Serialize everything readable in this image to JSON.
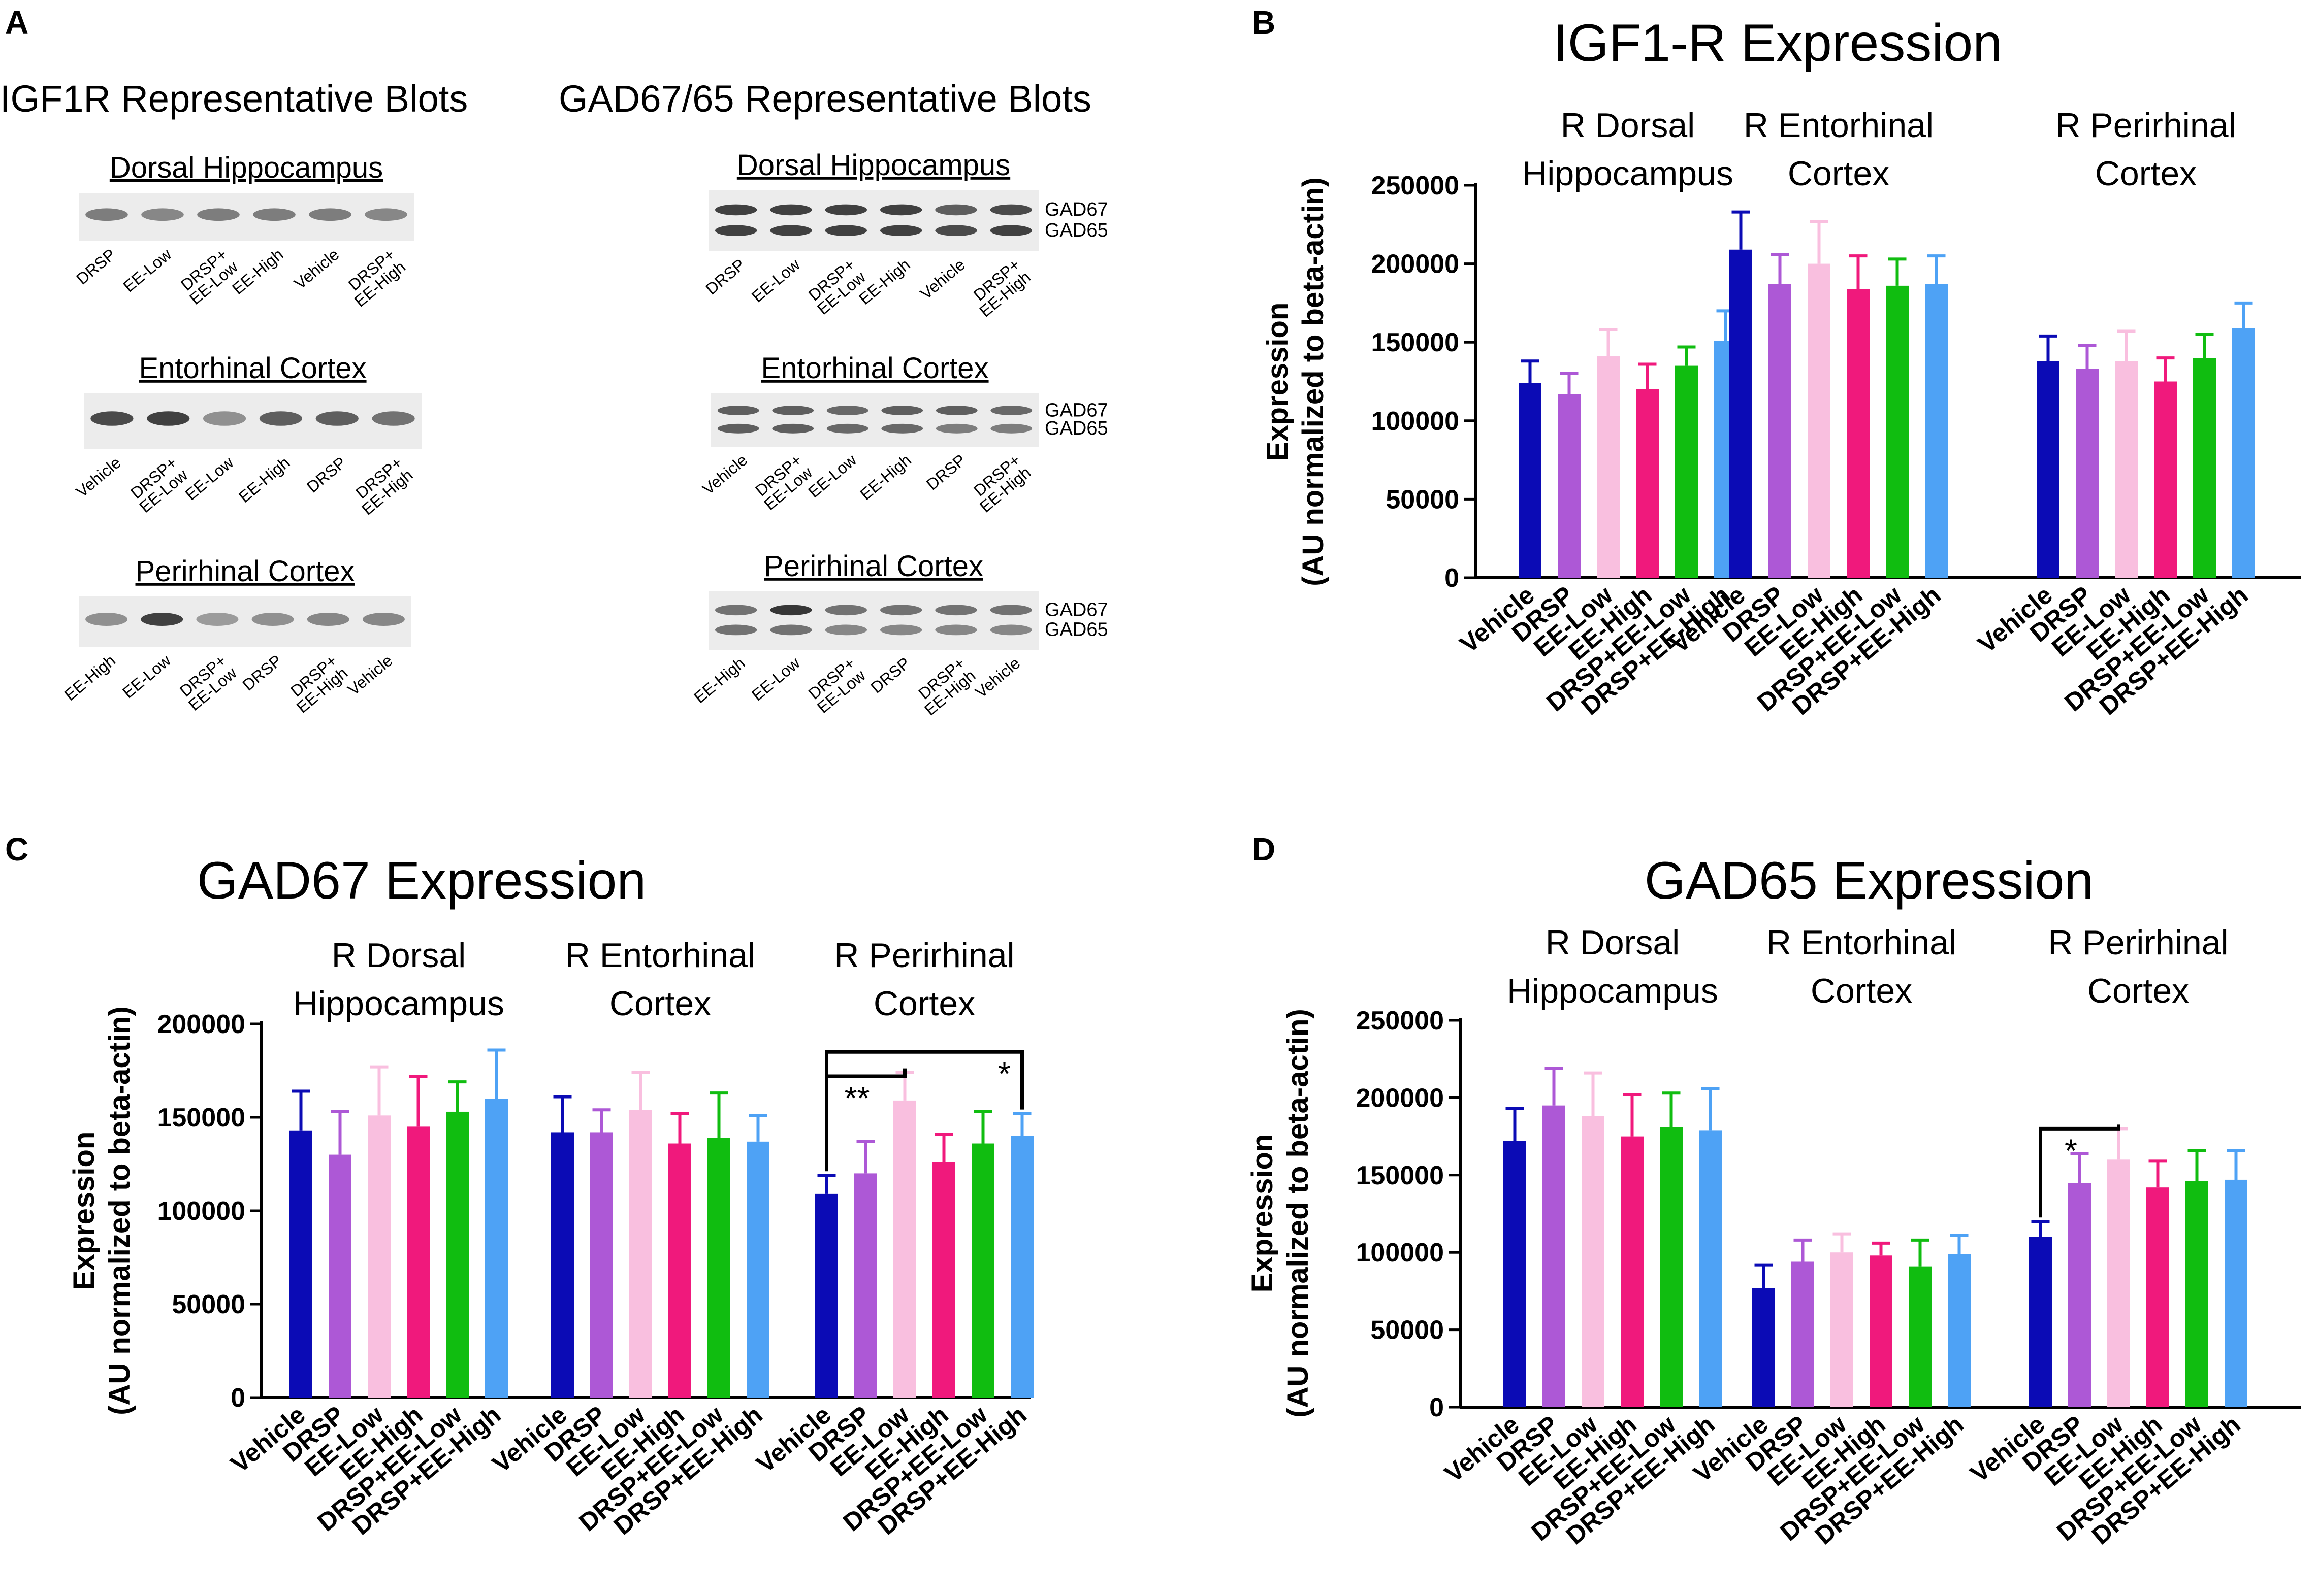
{
  "panels": {
    "A": "A",
    "B": "B",
    "C": "C",
    "D": "D"
  },
  "blots": {
    "igf1r": {
      "title": "IGF1R Representative Blots",
      "regions": [
        {
          "name": "Dorsal Hippocampus",
          "lanes": [
            "DRSP",
            "EE-Low",
            "DRSP+ EE-Low",
            "EE-High",
            "Vehicle",
            "DRSP+ EE-High"
          ]
        },
        {
          "name": "Entorhinal Cortex",
          "lanes": [
            "Vehicle",
            "DRSP+ EE-Low",
            "EE-Low",
            "EE-High",
            "DRSP",
            "DRSP+ EE-High"
          ]
        },
        {
          "name": "Perirhinal Cortex",
          "lanes": [
            "EE-High",
            "EE-Low",
            "DRSP+ EE-Low",
            "DRSP",
            "DRSP+ EE-High",
            "Vehicle"
          ]
        }
      ]
    },
    "gad": {
      "title": "GAD67/65 Representative Blots",
      "band_labels": [
        "GAD67",
        "GAD65"
      ],
      "regions": [
        {
          "name": "Dorsal Hippocampus",
          "lanes": [
            "DRSP",
            "EE-Low",
            "DRSP+ EE-Low",
            "EE-High",
            "Vehicle",
            "DRSP+ EE-High"
          ]
        },
        {
          "name": "Entorhinal Cortex",
          "lanes": [
            "Vehicle",
            "DRSP+ EE-Low",
            "EE-Low",
            "EE-High",
            "DRSP",
            "DRSP+ EE-High"
          ]
        },
        {
          "name": "Perirhinal Cortex",
          "lanes": [
            "EE-High",
            "EE-Low",
            "DRSP+ EE-Low",
            "DRSP",
            "DRSP+ EE-High",
            "Vehicle"
          ]
        }
      ]
    }
  },
  "series_colors": [
    "#0b0bb5",
    "#ad58d6",
    "#f9bfdf",
    "#f0197c",
    "#10bd10",
    "#4ea2f5"
  ],
  "chart_data": [
    {
      "type": "bar",
      "panel": "B",
      "title": "IGF1-R Expression",
      "ylabel": [
        "Expression",
        "(AU normalized to beta-actin)"
      ],
      "ylim": [
        0,
        250000
      ],
      "yticks": [
        0,
        50000,
        100000,
        150000,
        200000,
        250000
      ],
      "categories": [
        "Vehicle",
        "DRSP",
        "EE-Low",
        "EE-High",
        "DRSP+EE-Low",
        "DRSP+EE-High"
      ],
      "groups": [
        {
          "label": [
            "R Dorsal",
            "Hippocampus"
          ],
          "values": [
            124000,
            117000,
            141000,
            120000,
            135000,
            151000
          ],
          "errors": [
            14000,
            13000,
            17000,
            16000,
            12000,
            19000
          ]
        },
        {
          "label": [
            "R Entorhinal",
            "Cortex"
          ],
          "values": [
            209000,
            187000,
            200000,
            184000,
            186000,
            187000
          ],
          "errors": [
            24000,
            19000,
            27000,
            21000,
            17000,
            18000
          ]
        },
        {
          "label": [
            "R Perirhinal",
            "Cortex"
          ],
          "values": [
            138000,
            133000,
            138000,
            125000,
            140000,
            159000
          ],
          "errors": [
            16000,
            15000,
            19000,
            15000,
            15000,
            16000
          ]
        }
      ],
      "significance": []
    },
    {
      "type": "bar",
      "panel": "C",
      "title": "GAD67 Expression",
      "ylabel": [
        "Expression",
        "(AU normalized to beta-actin)"
      ],
      "ylim": [
        0,
        200000
      ],
      "yticks": [
        0,
        50000,
        100000,
        150000,
        200000
      ],
      "categories": [
        "Vehicle",
        "DRSP",
        "EE-Low",
        "EE-High",
        "DRSP+EE-Low",
        "DRSP+EE-High"
      ],
      "groups": [
        {
          "label": [
            "R Dorsal",
            "Hippocampus"
          ],
          "values": [
            143000,
            130000,
            151000,
            145000,
            153000,
            160000
          ],
          "errors": [
            21000,
            23000,
            26000,
            27000,
            16000,
            26000
          ]
        },
        {
          "label": [
            "R Entorhinal",
            "Cortex"
          ],
          "values": [
            142000,
            142000,
            154000,
            136000,
            139000,
            137000
          ],
          "errors": [
            19000,
            12000,
            20000,
            16000,
            24000,
            14000
          ]
        },
        {
          "label": [
            "R Perirhinal",
            "Cortex"
          ],
          "values": [
            109000,
            120000,
            159000,
            126000,
            136000,
            140000
          ],
          "errors": [
            10000,
            17000,
            15000,
            15000,
            17000,
            12000
          ]
        }
      ],
      "significance": [
        {
          "group": 2,
          "from": 0,
          "to": 2,
          "label": "**",
          "y": 172000
        },
        {
          "group": 2,
          "from": 0,
          "to": 5,
          "label": "*",
          "y": 185000
        }
      ]
    },
    {
      "type": "bar",
      "panel": "D",
      "title": "GAD65 Expression",
      "ylabel": [
        "Expression",
        "(AU normalized to beta-actin)"
      ],
      "ylim": [
        0,
        250000
      ],
      "yticks": [
        0,
        50000,
        100000,
        150000,
        200000,
        250000
      ],
      "categories": [
        "Vehicle",
        "DRSP",
        "EE-Low",
        "EE-High",
        "DRSP+EE-Low",
        "DRSP+EE-High"
      ],
      "groups": [
        {
          "label": [
            "R Dorsal",
            "Hippocampus"
          ],
          "values": [
            172000,
            195000,
            188000,
            175000,
            181000,
            179000
          ],
          "errors": [
            21000,
            24000,
            28000,
            27000,
            22000,
            27000
          ]
        },
        {
          "label": [
            "R Entorhinal",
            "Cortex"
          ],
          "values": [
            77000,
            94000,
            100000,
            98000,
            91000,
            99000
          ],
          "errors": [
            15000,
            14000,
            12000,
            8000,
            17000,
            12000
          ]
        },
        {
          "label": [
            "R Perirhinal",
            "Cortex"
          ],
          "values": [
            110000,
            145000,
            160000,
            142000,
            146000,
            147000
          ],
          "errors": [
            10000,
            19000,
            20000,
            17000,
            20000,
            19000
          ]
        }
      ],
      "significance": [
        {
          "group": 2,
          "from": 0,
          "to": 2,
          "label": "*",
          "y": 180000
        }
      ]
    }
  ]
}
